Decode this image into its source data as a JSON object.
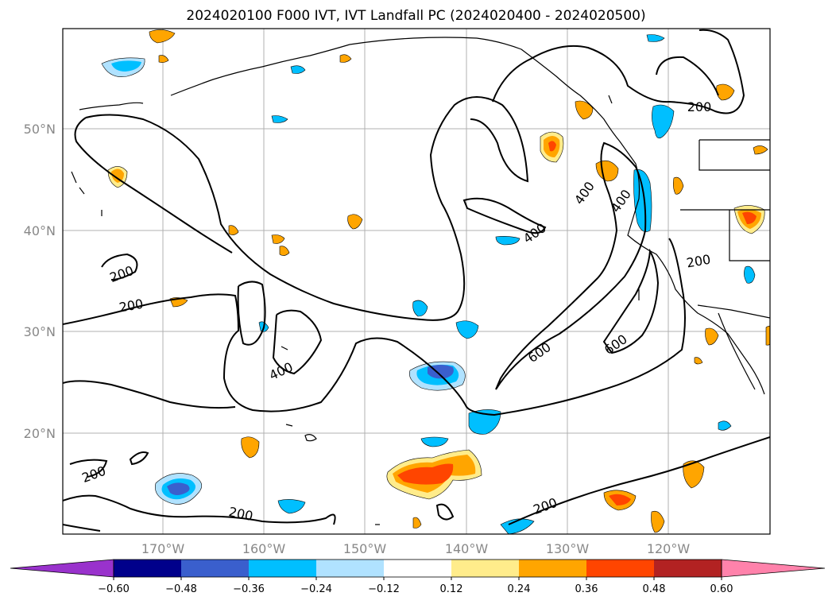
{
  "title": "2024020100 F000 IVT, IVT Landfall PC (2024020400 - 2024020500)",
  "lat_labels": [
    "50°N",
    "40°N",
    "30°N",
    "20°N"
  ],
  "lon_labels": [
    "170°W",
    "160°W",
    "150°W",
    "140°W",
    "130°W",
    "120°W"
  ],
  "contour_labels": [
    "200",
    "200",
    "200",
    "200",
    "200",
    "200",
    "200",
    "400",
    "400",
    "400",
    "400",
    "600"
  ],
  "colorbar": {
    "colors": [
      "#9932cc",
      "#00008b",
      "#3a5fcd",
      "#00bfff",
      "#b0e2ff",
      "#ffffff",
      "#ffec8b",
      "#ffa500",
      "#ff4500",
      "#b22222",
      "#ff82ab"
    ],
    "ticks": [
      "−0.60",
      "−0.48",
      "−0.36",
      "−0.24",
      "−0.12",
      "0.12",
      "0.24",
      "0.36",
      "0.48",
      "0.60"
    ]
  },
  "colors": {
    "grid": "#b0b0b0",
    "contour": "#000000",
    "tick_text": "#888888"
  }
}
